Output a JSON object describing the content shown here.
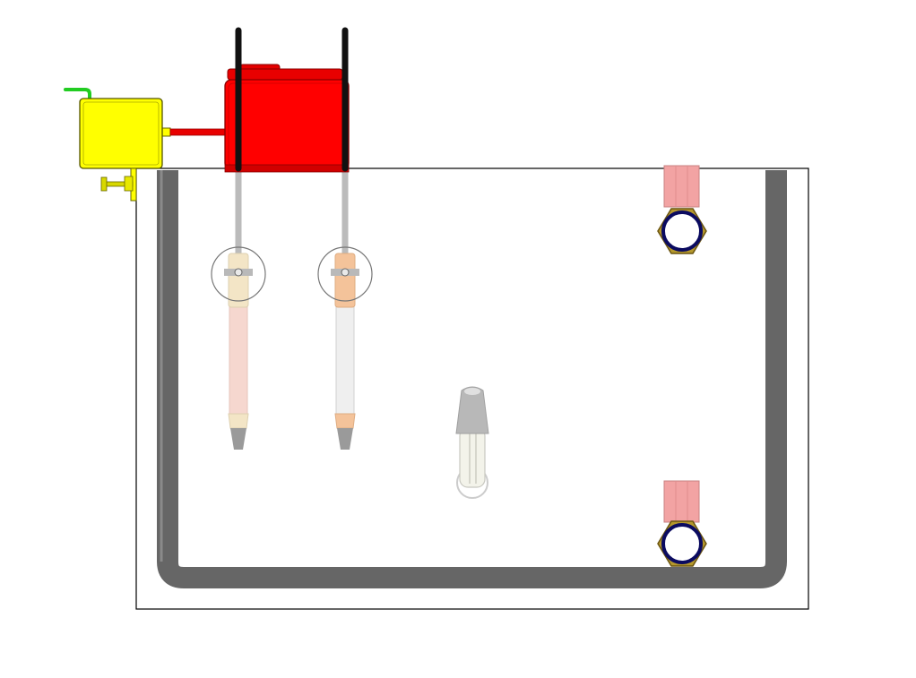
{
  "colors": {
    "background": "#ffffff",
    "tank_outline": "#000000",
    "inner_pipe": "#666666",
    "pump_body": "#ff0000",
    "pump_cap": "#e30000",
    "pump_legs": "#111111",
    "controller_body": "#ffff00",
    "controller_outline": "#555500",
    "controller_nozzle": "#22cc22",
    "connector_tube": "#e80000",
    "probe_rod": "#bbbbbb",
    "probe_clamp_ring": "#777777",
    "probe_left_tube": "#f6d7cf",
    "probe_right_tube": "#efefef",
    "probe_joint_cream": "#f3e5c6",
    "probe_joint_orange": "#f4c39a",
    "probe_tip": "#9a9a9a",
    "heater_cap": "#b8b8b8",
    "heater_tube": "#f3f3ea",
    "port_pipe": "#f2a3a3",
    "port_nut": "#b5982c",
    "port_ring": "#0b0b60"
  },
  "icons": {
    "pump": "red-circulation-pump",
    "controller": "yellow-control-box",
    "clamp": "mounting-clamp-screw",
    "probes": "immersion-probe",
    "heater": "immersion-heater",
    "ports": "hex-pipe-fitting"
  }
}
